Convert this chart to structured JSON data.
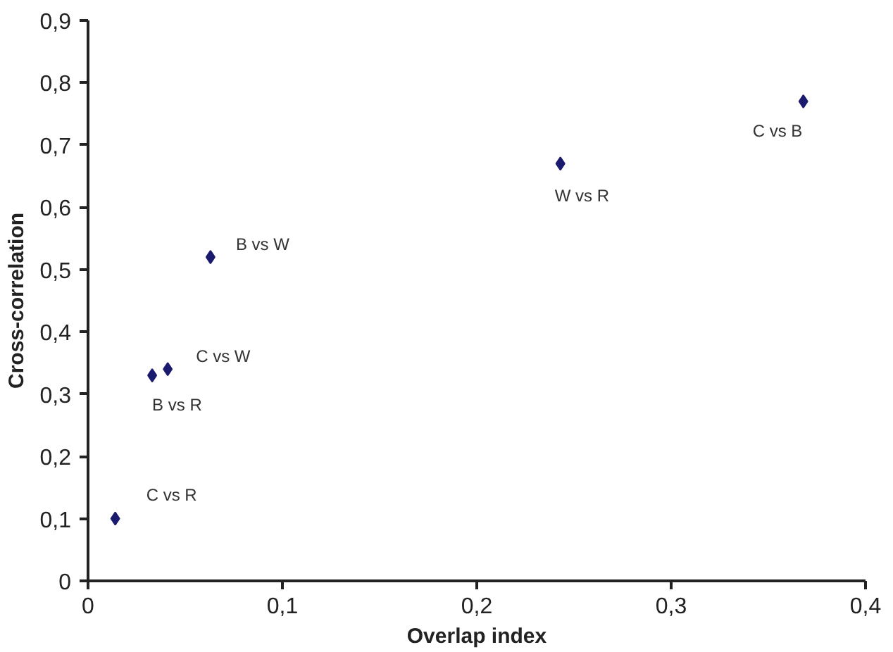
{
  "chart_data": {
    "type": "scatter",
    "xlabel": "Overlap index",
    "ylabel": "Cross-correlation",
    "x": [
      0.014,
      0.033,
      0.041,
      0.063,
      0.243,
      0.368
    ],
    "series": [
      {
        "color": "#1a1a6e",
        "values": [
          0.1,
          0.33,
          0.34,
          0.52,
          0.67,
          0.77
        ]
      }
    ],
    "marker": "diamond",
    "grid": false,
    "xlim": [
      0,
      0.4
    ],
    "xticks": [
      {
        "value": 0,
        "label": "0"
      },
      {
        "value": 0.1,
        "label": "0,1"
      },
      {
        "value": 0.2,
        "label": "0,2"
      },
      {
        "value": 0.3,
        "label": "0,3"
      },
      {
        "value": 0.4,
        "label": "0,4"
      }
    ],
    "ylim": [
      0,
      0.9
    ],
    "yticks": [
      {
        "value": 0,
        "label": "0"
      },
      {
        "value": 0.1,
        "label": "0,1"
      },
      {
        "value": 0.2,
        "label": "0,2"
      },
      {
        "value": 0.3,
        "label": "0,3"
      },
      {
        "value": 0.4,
        "label": "0,4"
      },
      {
        "value": 0.5,
        "label": "0,5"
      },
      {
        "value": 0.6,
        "label": "0,6"
      },
      {
        "value": 0.7,
        "label": "0,7"
      },
      {
        "value": 0.8,
        "label": "0,8"
      },
      {
        "value": 0.9,
        "label": "0,9"
      }
    ],
    "annotations": [
      {
        "text": "C vs R",
        "x": 0.014,
        "y": 0.1
      },
      {
        "text": "B vs R",
        "x": 0.033,
        "y": 0.33
      },
      {
        "text": "C vs W",
        "x": 0.041,
        "y": 0.34
      },
      {
        "text": "B vs W",
        "x": 0.063,
        "y": 0.52
      },
      {
        "text": "W vs R",
        "x": 0.243,
        "y": 0.67
      },
      {
        "text": "C vs B",
        "x": 0.368,
        "y": 0.77
      }
    ]
  }
}
